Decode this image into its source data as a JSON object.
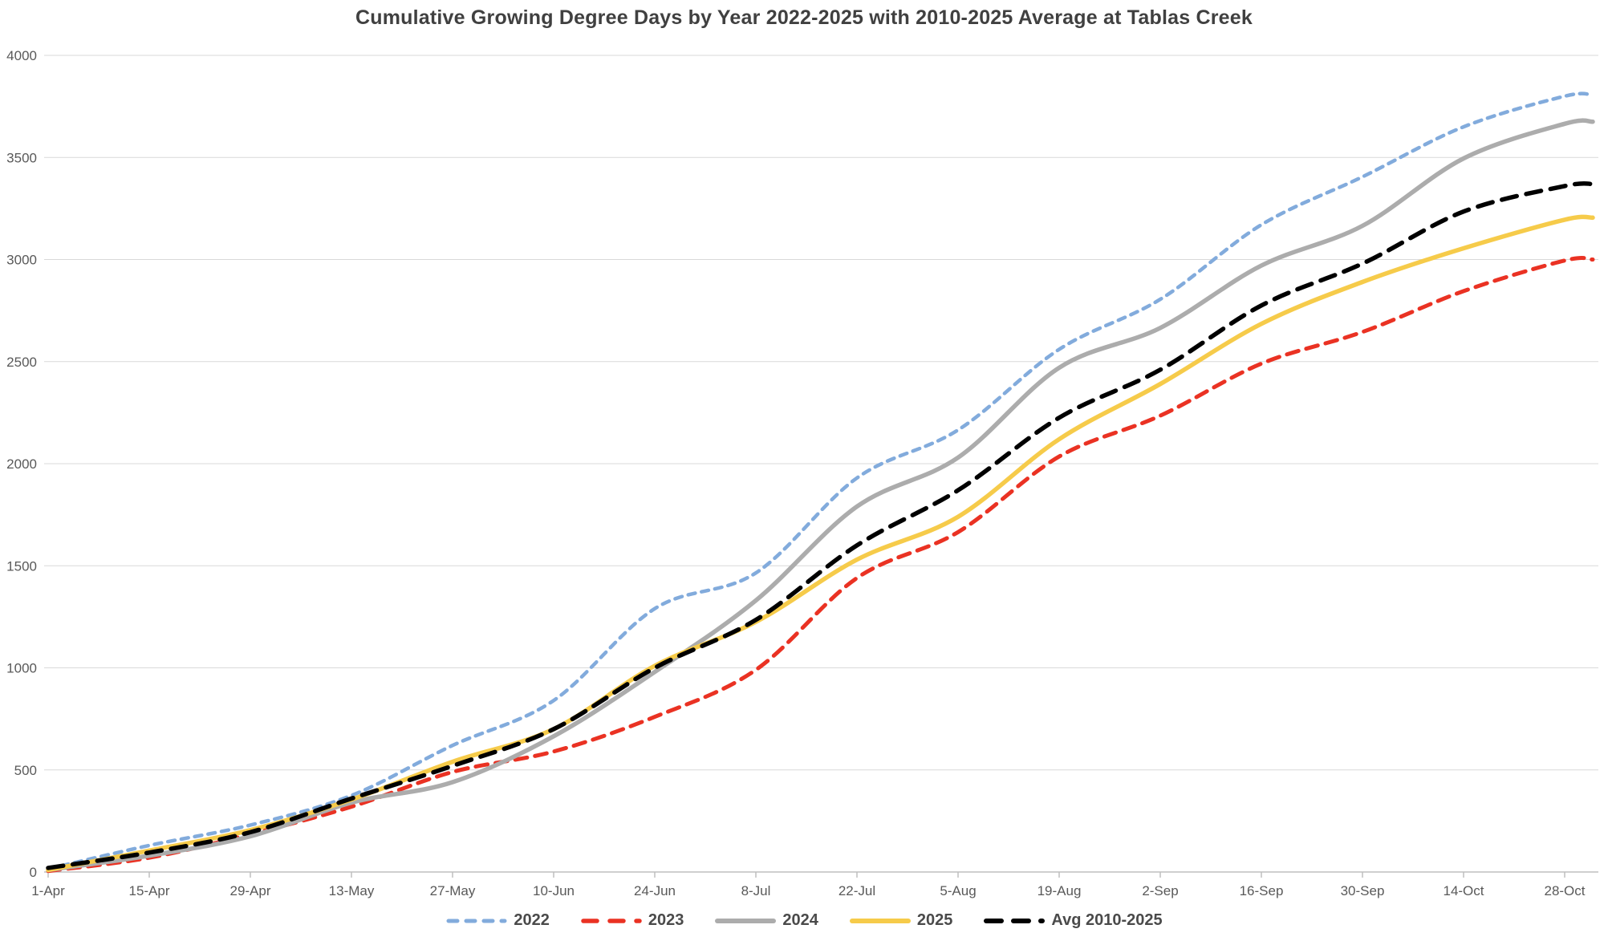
{
  "chart_data": {
    "type": "line",
    "title": "Cumulative Growing Degree Days by Year 2022-2025 with 2010-2025 Average at Tablas Creek",
    "categories": [
      "1-Apr",
      "15-Apr",
      "29-Apr",
      "13-May",
      "27-May",
      "10-Jun",
      "24-Jun",
      "8-Jul",
      "22-Jul",
      "5-Aug",
      "19-Aug",
      "2-Sep",
      "16-Sep",
      "30-Sep",
      "14-Oct",
      "28-Oct"
    ],
    "y_ticks": [
      0,
      500,
      1000,
      1500,
      2000,
      2500,
      3000,
      3500,
      4000
    ],
    "ylim": [
      0,
      4000
    ],
    "grid": "horizontal",
    "legend_position": "bottom",
    "series": [
      {
        "name": "2022",
        "color": "#82ABDC",
        "line_style": "short-dash",
        "values": [
          15,
          130,
          230,
          375,
          620,
          840,
          1290,
          1465,
          1930,
          2165,
          2560,
          2805,
          3170,
          3405,
          3650,
          3800
        ],
        "end_value": 3805
      },
      {
        "name": "2023",
        "color": "#EA3223",
        "line_style": "medium-dash",
        "values": [
          5,
          70,
          185,
          320,
          490,
          590,
          760,
          990,
          1440,
          1665,
          2035,
          2235,
          2490,
          2645,
          2845,
          2995
        ],
        "end_value": 3000
      },
      {
        "name": "2024",
        "color": "#ACACAC",
        "line_style": "solid",
        "values": [
          10,
          80,
          175,
          340,
          440,
          665,
          980,
          1330,
          1790,
          2030,
          2470,
          2665,
          2970,
          3165,
          3495,
          3665
        ],
        "end_value": 3675
      },
      {
        "name": "2025",
        "color": "#F6CB4A",
        "line_style": "solid",
        "values": [
          10,
          105,
          205,
          355,
          540,
          700,
          1010,
          1225,
          1530,
          1740,
          2120,
          2390,
          2685,
          2890,
          3055,
          3195
        ],
        "end_value": 3205
      },
      {
        "name": "Avg 2010-2025",
        "color": "#000000",
        "line_style": "long-dash",
        "values": [
          20,
          95,
          195,
          360,
          520,
          700,
          1000,
          1235,
          1600,
          1870,
          2225,
          2460,
          2775,
          2980,
          3235,
          3360
        ],
        "end_value": 3370
      }
    ]
  },
  "style": {
    "background": "#FFFFFF",
    "title_color": "#404040",
    "axis_text_color": "#595959",
    "gridline_color": "#D9D9D9",
    "axis_line_color": "#BFBFBF",
    "legend_text_color": "#4a4a4a"
  }
}
